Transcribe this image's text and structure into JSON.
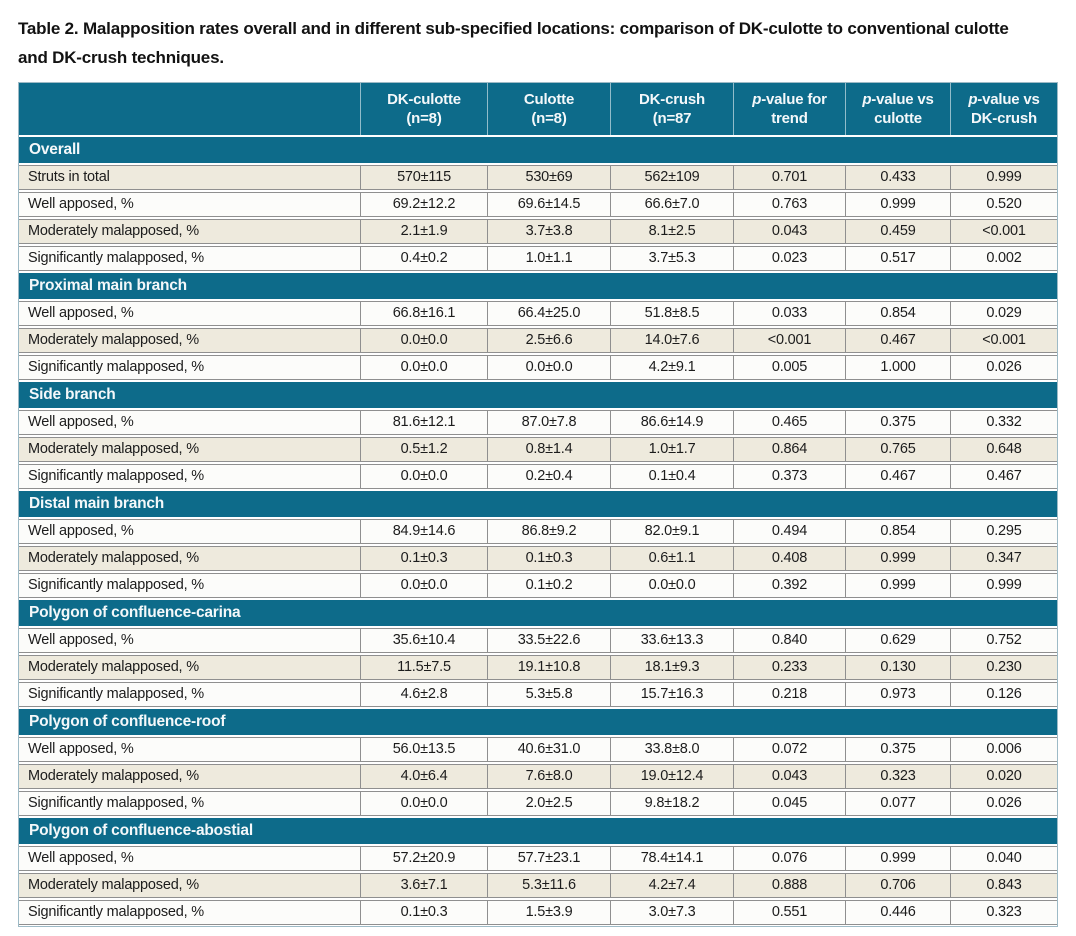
{
  "caption": "Table 2. Malapposition rates overall and in different sub-specified locations: comparison of DK-culotte to conventional culotte and DK-crush techniques.",
  "colors": {
    "teal_header": "#0d6b8a",
    "cream_row": "#eeeadd",
    "white_row": "#fcfcfa",
    "row_border": "#8f8f8f",
    "header_text": "#f4f8fa"
  },
  "table": {
    "columns": [
      {
        "id": "dk-culotte",
        "italic1": "",
        "line1": "DK-culotte",
        "line2": "(n=8)"
      },
      {
        "id": "culotte",
        "italic1": "",
        "line1": "Culotte",
        "line2": "(n=8)"
      },
      {
        "id": "dk-crush",
        "italic1": "",
        "line1": "DK-crush",
        "line2": "(n=87"
      },
      {
        "id": "p-value-trend",
        "italic1": "p",
        "line1": "-value for",
        "line2": "trend"
      },
      {
        "id": "p-value-vs-culotte",
        "italic1": "p",
        "line1": "-value vs",
        "line2": "culotte"
      },
      {
        "id": "p-value-vs-dk-crush",
        "italic1": "p",
        "line1": "-value vs",
        "line2": "DK-crush"
      }
    ],
    "sections": [
      {
        "header": "Overall",
        "rows": [
          {
            "label": "Struts in total",
            "values": [
              "570±115",
              "530±69",
              "562±109",
              "0.701",
              "0.433",
              "0.999"
            ]
          },
          {
            "label": "Well apposed, %",
            "values": [
              "69.2±12.2",
              "69.6±14.5",
              "66.6±7.0",
              "0.763",
              "0.999",
              "0.520"
            ]
          },
          {
            "label": "Moderately malapposed, %",
            "values": [
              "2.1±1.9",
              "3.7±3.8",
              "8.1±2.5",
              "0.043",
              "0.459",
              "<0.001"
            ]
          },
          {
            "label": "Significantly malapposed, %",
            "values": [
              "0.4±0.2",
              "1.0±1.1",
              "3.7±5.3",
              "0.023",
              "0.517",
              "0.002"
            ]
          }
        ]
      },
      {
        "header": "Proximal main branch",
        "rows": [
          {
            "label": "Well apposed, %",
            "values": [
              "66.8±16.1",
              "66.4±25.0",
              "51.8±8.5",
              "0.033",
              "0.854",
              "0.029"
            ]
          },
          {
            "label": "Moderately malapposed, %",
            "values": [
              "0.0±0.0",
              "2.5±6.6",
              "14.0±7.6",
              "<0.001",
              "0.467",
              "<0.001"
            ]
          },
          {
            "label": "Significantly malapposed, %",
            "values": [
              "0.0±0.0",
              "0.0±0.0",
              "4.2±9.1",
              "0.005",
              "1.000",
              "0.026"
            ]
          }
        ]
      },
      {
        "header": "Side branch",
        "rows": [
          {
            "label": "Well apposed, %",
            "values": [
              "81.6±12.1",
              "87.0±7.8",
              "86.6±14.9",
              "0.465",
              "0.375",
              "0.332"
            ]
          },
          {
            "label": "Moderately malapposed, %",
            "values": [
              "0.5±1.2",
              "0.8±1.4",
              "1.0±1.7",
              "0.864",
              "0.765",
              "0.648"
            ]
          },
          {
            "label": "Significantly malapposed, %",
            "values": [
              "0.0±0.0",
              "0.2±0.4",
              "0.1±0.4",
              "0.373",
              "0.467",
              "0.467"
            ]
          }
        ]
      },
      {
        "header": "Distal main branch",
        "rows": [
          {
            "label": "Well apposed, %",
            "values": [
              "84.9±14.6",
              "86.8±9.2",
              "82.0±9.1",
              "0.494",
              "0.854",
              "0.295"
            ]
          },
          {
            "label": "Moderately malapposed, %",
            "values": [
              "0.1±0.3",
              "0.1±0.3",
              "0.6±1.1",
              "0.408",
              "0.999",
              "0.347"
            ]
          },
          {
            "label": "Significantly malapposed, %",
            "values": [
              "0.0±0.0",
              "0.1±0.2",
              "0.0±0.0",
              "0.392",
              "0.999",
              "0.999"
            ]
          }
        ]
      },
      {
        "header": "Polygon of confluence-carina",
        "rows": [
          {
            "label": "Well apposed, %",
            "values": [
              "35.6±10.4",
              "33.5±22.6",
              "33.6±13.3",
              "0.840",
              "0.629",
              "0.752"
            ]
          },
          {
            "label": "Moderately malapposed, %",
            "values": [
              "11.5±7.5",
              "19.1±10.8",
              "18.1±9.3",
              "0.233",
              "0.130",
              "0.230"
            ]
          },
          {
            "label": "Significantly malapposed, %",
            "values": [
              "4.6±2.8",
              "5.3±5.8",
              "15.7±16.3",
              "0.218",
              "0.973",
              "0.126"
            ]
          }
        ]
      },
      {
        "header": "Polygon of confluence-roof",
        "rows": [
          {
            "label": "Well apposed, %",
            "values": [
              "56.0±13.5",
              "40.6±31.0",
              "33.8±8.0",
              "0.072",
              "0.375",
              "0.006"
            ]
          },
          {
            "label": "Moderately malapposed, %",
            "values": [
              "4.0±6.4",
              "7.6±8.0",
              "19.0±12.4",
              "0.043",
              "0.323",
              "0.020"
            ]
          },
          {
            "label": "Significantly malapposed, %",
            "values": [
              "0.0±0.0",
              "2.0±2.5",
              "9.8±18.2",
              "0.045",
              "0.077",
              "0.026"
            ]
          }
        ]
      },
      {
        "header": "Polygon of confluence-abostial",
        "rows": [
          {
            "label": "Well apposed, %",
            "values": [
              "57.2±20.9",
              "57.7±23.1",
              "78.4±14.1",
              "0.076",
              "0.999",
              "0.040"
            ]
          },
          {
            "label": "Moderately malapposed, %",
            "values": [
              "3.6±7.1",
              "5.3±11.6",
              "4.2±7.4",
              "0.888",
              "0.706",
              "0.843"
            ]
          },
          {
            "label": "Significantly malapposed, %",
            "values": [
              "0.1±0.3",
              "1.5±3.9",
              "3.0±7.3",
              "0.551",
              "0.446",
              "0.323"
            ]
          }
        ]
      }
    ]
  }
}
